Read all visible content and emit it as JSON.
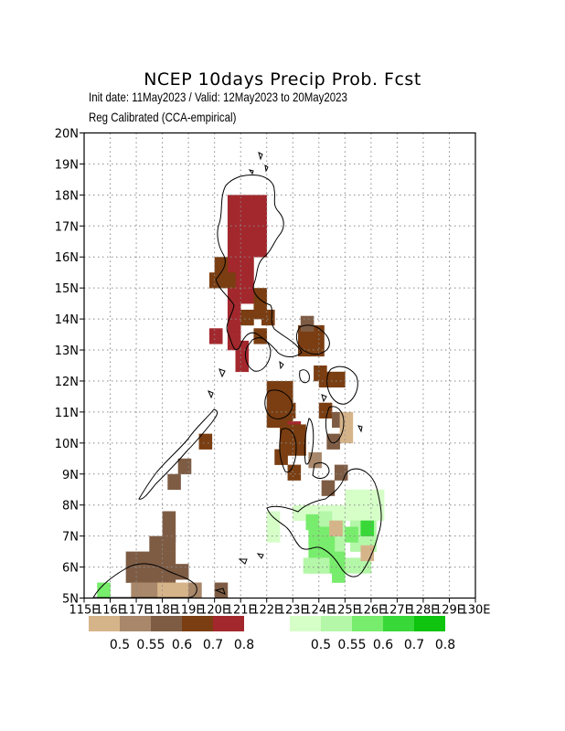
{
  "title": "NCEP 10days Precip Prob. Fcst",
  "subtitle_line1": "Init date: 11May2023 / Valid: 12May2023 to 20May2023",
  "subtitle_line2": "Reg Calibrated (CCA-empirical)",
  "axes": {
    "lon_range": [
      115,
      130
    ],
    "lat_range": [
      5,
      20
    ],
    "x_tick_labels": [
      "115E",
      "116E",
      "117E",
      "118E",
      "119E",
      "120E",
      "121E",
      "122E",
      "123E",
      "124E",
      "125E",
      "126E",
      "127E",
      "128E",
      "129E",
      "130E"
    ],
    "y_tick_labels": [
      "5N",
      "6N",
      "7N",
      "8N",
      "9N",
      "10N",
      "11N",
      "12N",
      "13N",
      "14N",
      "15N",
      "16N",
      "17N",
      "18N",
      "19N",
      "20N"
    ],
    "grid": "dotted"
  },
  "legend_dry": {
    "labels": [
      "0.5",
      "0.55",
      "0.6",
      "0.7",
      "0.8"
    ],
    "colors": [
      "#d6b48a",
      "#a8876a",
      "#7e5c44",
      "#7a3e12",
      "#a3282d"
    ]
  },
  "legend_wet": {
    "labels": [
      "0.5",
      "0.55",
      "0.6",
      "0.7",
      "0.8"
    ],
    "colors": [
      "#d6ffc8",
      "#b4f7a8",
      "#78ec6c",
      "#38d838",
      "#0ec40e"
    ]
  }
}
